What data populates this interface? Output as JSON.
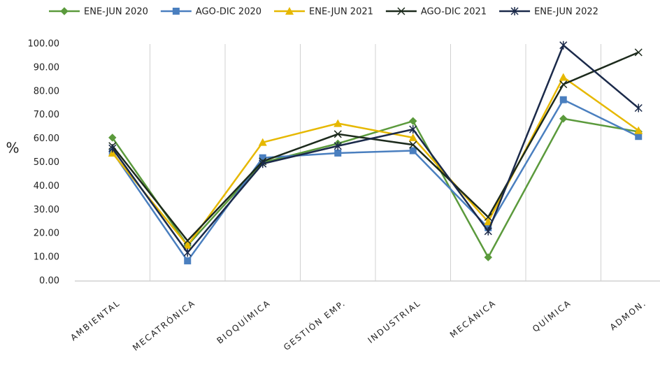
{
  "chart_data": {
    "type": "line",
    "y_label": "%",
    "categories": [
      "AMBIENTAL",
      "MECATRÓNICA",
      "BIOQUÍMICA",
      "GESTIÓN EMP.",
      "INDUSTRIAL",
      "MECÁNICA",
      "QUÍMICA",
      "ADMON."
    ],
    "series": [
      {
        "name": "ENE-JUN 2020",
        "color": "#5b9a3c",
        "marker": "diamond",
        "values": [
          60.5,
          15,
          50,
          58,
          67.5,
          10,
          68.5,
          63
        ]
      },
      {
        "name": "AGO-DIC 2020",
        "color": "#4a7fbf",
        "marker": "square",
        "values": [
          54.5,
          8.5,
          52,
          54,
          55,
          22.5,
          76.5,
          61
        ]
      },
      {
        "name": "ENE-JUN 2021",
        "color": "#e6b800",
        "marker": "triangle",
        "values": [
          54,
          15,
          58.5,
          66.5,
          60.5,
          25,
          86,
          63.5
        ]
      },
      {
        "name": "AGO-DIC 2021",
        "color": "#1c2a1c",
        "marker": "x",
        "values": [
          57,
          17,
          50.5,
          62,
          57.5,
          27,
          83,
          96.5
        ]
      },
      {
        "name": "ENE-JUN 2022",
        "color": "#1b2a4a",
        "marker": "star",
        "values": [
          56,
          12,
          49.5,
          57,
          64,
          21,
          99.5,
          73
        ]
      }
    ],
    "ylim": [
      0,
      100
    ],
    "yticks": [
      {
        "value": 0,
        "label": "0.00"
      },
      {
        "value": 10,
        "label": "10.00"
      },
      {
        "value": 20,
        "label": "20.00"
      },
      {
        "value": 30,
        "label": "30.00"
      },
      {
        "value": 40,
        "label": "40.00"
      },
      {
        "value": 50,
        "label": "50.00"
      },
      {
        "value": 60,
        "label": "60.00"
      },
      {
        "value": 70,
        "label": "70.00"
      },
      {
        "value": 80,
        "label": "80.00"
      },
      {
        "value": 90,
        "label": "90.00"
      },
      {
        "value": 100,
        "label": "100.00"
      }
    ],
    "grid": true
  }
}
